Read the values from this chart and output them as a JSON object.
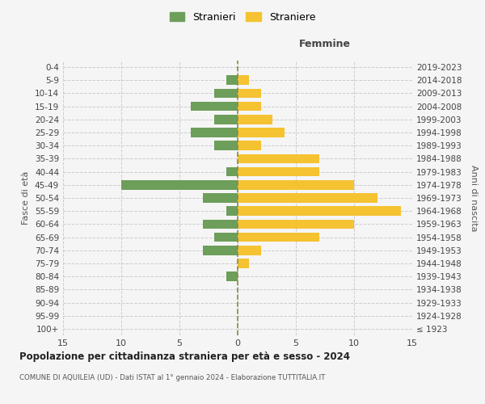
{
  "age_groups": [
    "100+",
    "95-99",
    "90-94",
    "85-89",
    "80-84",
    "75-79",
    "70-74",
    "65-69",
    "60-64",
    "55-59",
    "50-54",
    "45-49",
    "40-44",
    "35-39",
    "30-34",
    "25-29",
    "20-24",
    "15-19",
    "10-14",
    "5-9",
    "0-4"
  ],
  "birth_years": [
    "≤ 1923",
    "1924-1928",
    "1929-1933",
    "1934-1938",
    "1939-1943",
    "1944-1948",
    "1949-1953",
    "1954-1958",
    "1959-1963",
    "1964-1968",
    "1969-1973",
    "1974-1978",
    "1979-1983",
    "1984-1988",
    "1989-1993",
    "1994-1998",
    "1999-2003",
    "2004-2008",
    "2009-2013",
    "2014-2018",
    "2019-2023"
  ],
  "males": [
    0,
    0,
    0,
    0,
    1,
    0,
    3,
    2,
    3,
    1,
    3,
    10,
    1,
    0,
    2,
    4,
    2,
    4,
    2,
    1,
    0
  ],
  "females": [
    0,
    0,
    0,
    0,
    0,
    1,
    2,
    7,
    10,
    14,
    12,
    10,
    7,
    7,
    2,
    4,
    3,
    2,
    2,
    1,
    0
  ],
  "male_color": "#6d9e5a",
  "female_color": "#f5c231",
  "bg_color": "#f5f5f5",
  "grid_color": "#cccccc",
  "dashed_line_color": "#8a8a4a",
  "title": "Popolazione per cittadinanza straniera per età e sesso - 2024",
  "subtitle": "COMUNE DI AQUILEIA (UD) - Dati ISTAT al 1° gennaio 2024 - Elaborazione TUTTITALIA.IT",
  "xlabel_right": "Femmine",
  "ylabel_left": "Fasce di età",
  "ylabel_right": "Anni di nascita",
  "legend_male": "Stranieri",
  "legend_female": "Straniere",
  "xlim": 15
}
